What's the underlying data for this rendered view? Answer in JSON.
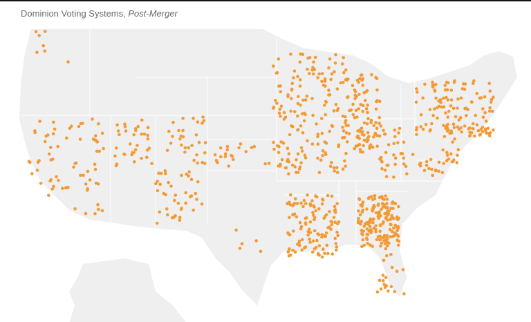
{
  "title": {
    "main": "Dominion Voting Systems, ",
    "emphasis": "Post-Merger"
  },
  "colors": {
    "dot": "#f39a35",
    "land": "#efefef",
    "border": "#ffffff",
    "title": "#6a6a6a"
  },
  "map": {
    "region": "United States",
    "marker": "orange dot per jurisdiction"
  }
}
